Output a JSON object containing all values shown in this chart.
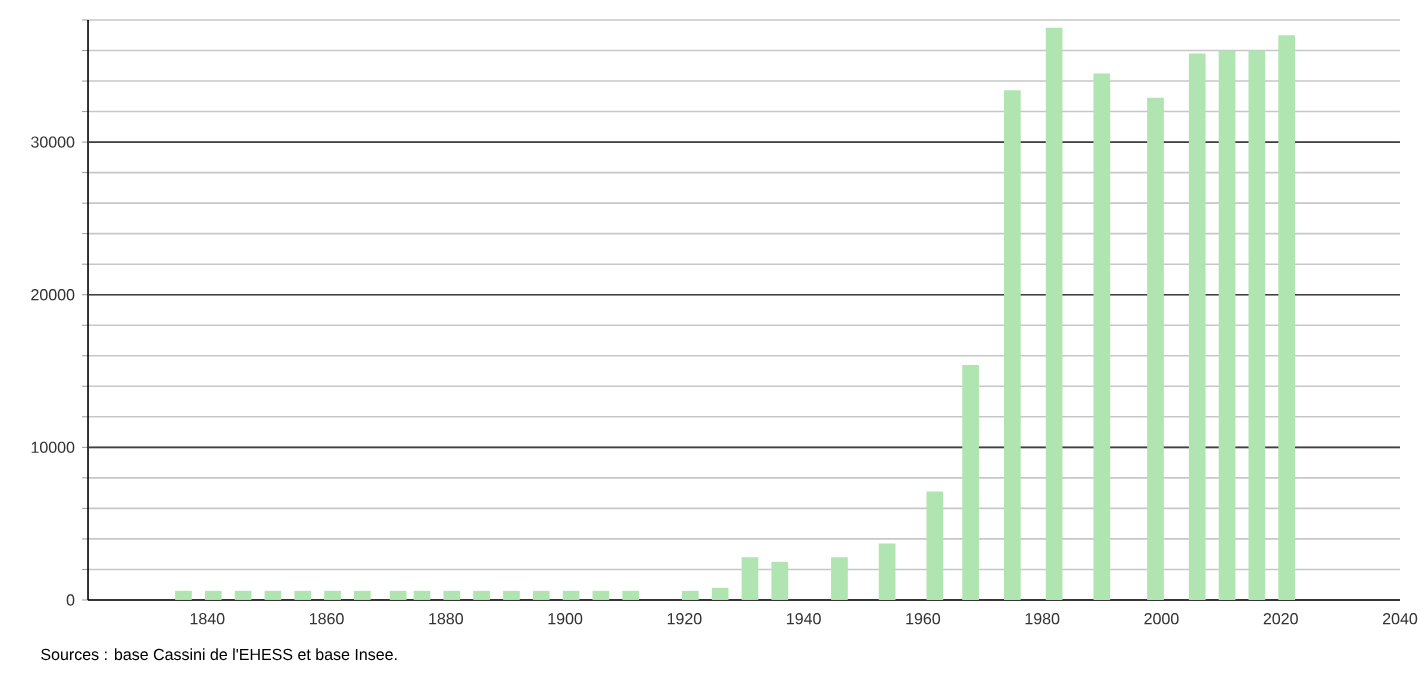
{
  "chart_data": {
    "type": "bar",
    "color": "#b0e4b0",
    "x": [
      1836,
      1841,
      1846,
      1851,
      1856,
      1861,
      1866,
      1872,
      1876,
      1881,
      1886,
      1891,
      1896,
      1901,
      1906,
      1911,
      1921,
      1926,
      1931,
      1936,
      1946,
      1954,
      1962,
      1968,
      1975,
      1982,
      1990,
      1999,
      2006,
      2011,
      2016,
      2021
    ],
    "values": [
      600,
      600,
      600,
      600,
      600,
      600,
      600,
      600,
      600,
      600,
      600,
      600,
      600,
      600,
      600,
      600,
      600,
      800,
      2800,
      2500,
      2800,
      3700,
      7100,
      15400,
      33400,
      37500,
      34500,
      32900,
      35800,
      36000,
      36000,
      37000
    ],
    "xlim": [
      1820,
      2040
    ],
    "xticks": [
      1840,
      1860,
      1880,
      1900,
      1920,
      1940,
      1960,
      1980,
      2000,
      2020,
      2040
    ],
    "ylim": [
      0,
      38000
    ],
    "yticks": [
      0,
      {
        "value": 2000,
        "label": null
      },
      {
        "value": 4000,
        "label": null
      },
      {
        "value": 6000,
        "label": null
      },
      {
        "value": 8000,
        "label": null
      },
      10000,
      {
        "value": 12000,
        "label": null
      },
      {
        "value": 14000,
        "label": null
      },
      {
        "value": 16000,
        "label": null
      },
      {
        "value": 18000,
        "label": null
      },
      20000,
      {
        "value": 22000,
        "label": null
      },
      {
        "value": 24000,
        "label": null
      },
      {
        "value": 26000,
        "label": null
      },
      {
        "value": 28000,
        "label": null
      },
      30000,
      {
        "value": 32000,
        "label": null
      },
      {
        "value": 34000,
        "label": null
      },
      {
        "value": 36000,
        "label": null
      },
      {
        "value": 38000,
        "label": null
      }
    ],
    "grid": "y",
    "annotations": [
      "Sources : base Cassini de l'EHESS et base Insee."
    ]
  }
}
